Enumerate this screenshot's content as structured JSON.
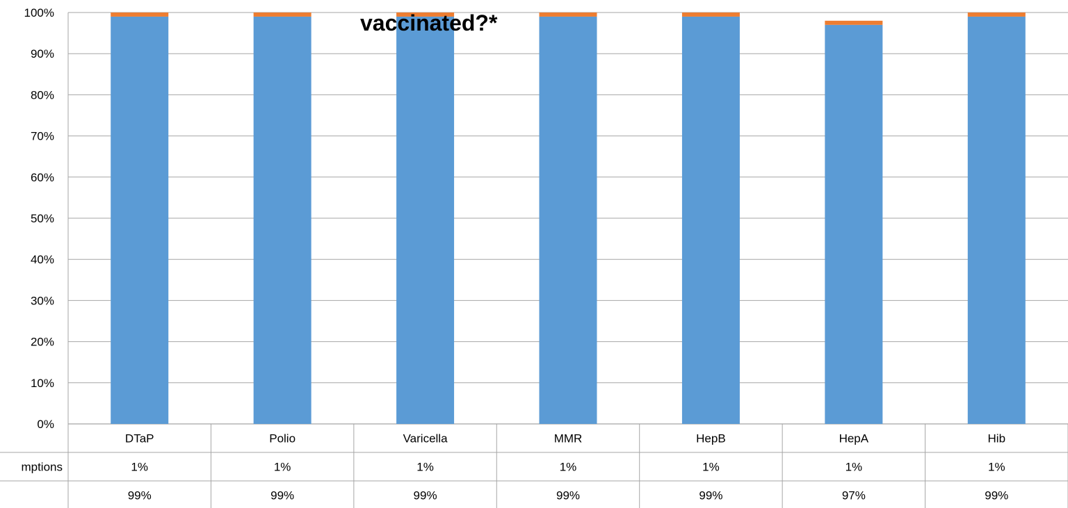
{
  "chart_data": {
    "type": "bar",
    "stacked": true,
    "title": "vaccinated?*",
    "categories": [
      "DTaP",
      "Polio",
      "Varicella",
      "MMR",
      "HepB",
      "HepA",
      "Hib"
    ],
    "series": [
      {
        "values": [
          99,
          99,
          99,
          99,
          99,
          97,
          99
        ],
        "labels": [
          "99%",
          "99%",
          "99%",
          "99%",
          "99%",
          "97%",
          "99%"
        ],
        "color": "#5b9bd5"
      },
      {
        "name": "mptions",
        "values": [
          1,
          1,
          1,
          1,
          1,
          1,
          1
        ],
        "labels": [
          "1%",
          "1%",
          "1%",
          "1%",
          "1%",
          "1%",
          "1%"
        ],
        "color": "#ed7d31"
      }
    ],
    "y_ticks": [
      "0%",
      "10%",
      "20%",
      "30%",
      "40%",
      "50%",
      "60%",
      "70%",
      "80%",
      "90%",
      "100%"
    ],
    "ylim": [
      0,
      100
    ],
    "grid": true,
    "data_table": true
  }
}
